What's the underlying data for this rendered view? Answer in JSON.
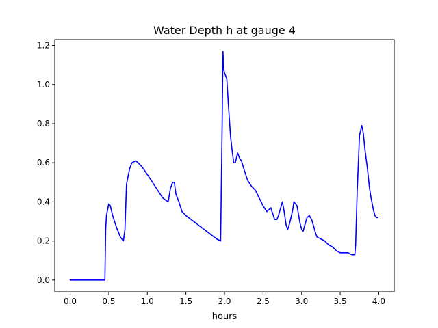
{
  "chart_data": {
    "type": "line",
    "title": "Water Depth h at gauge 4",
    "xlabel": "hours",
    "ylabel": "",
    "xlim": [
      -0.2,
      4.2
    ],
    "ylim": [
      -0.06,
      1.23
    ],
    "xticks": [
      {
        "value": 0.0,
        "label": "0.0"
      },
      {
        "value": 0.5,
        "label": "0.5"
      },
      {
        "value": 1.0,
        "label": "1.0"
      },
      {
        "value": 1.5,
        "label": "1.5"
      },
      {
        "value": 2.0,
        "label": "2.0"
      },
      {
        "value": 2.5,
        "label": "2.5"
      },
      {
        "value": 3.0,
        "label": "3.0"
      },
      {
        "value": 3.5,
        "label": "3.5"
      },
      {
        "value": 4.0,
        "label": "4.0"
      }
    ],
    "yticks": [
      {
        "value": 0.0,
        "label": "0.0"
      },
      {
        "value": 0.2,
        "label": "0.2"
      },
      {
        "value": 0.4,
        "label": "0.4"
      },
      {
        "value": 0.6,
        "label": "0.6"
      },
      {
        "value": 0.8,
        "label": "0.8"
      },
      {
        "value": 1.0,
        "label": "1.0"
      },
      {
        "value": 1.2,
        "label": "1.2"
      }
    ],
    "grid": false,
    "series": [
      {
        "color": "#0000ff",
        "x": [
          0.0,
          0.45,
          0.46,
          0.47,
          0.5,
          0.52,
          0.55,
          0.6,
          0.65,
          0.69,
          0.71,
          0.73,
          0.77,
          0.8,
          0.85,
          0.88,
          0.93,
          1.0,
          1.1,
          1.2,
          1.27,
          1.3,
          1.33,
          1.35,
          1.37,
          1.4,
          1.45,
          1.5,
          1.6,
          1.7,
          1.8,
          1.9,
          1.95,
          1.97,
          1.98,
          1.99,
          2.0,
          2.03,
          2.05,
          2.08,
          2.1,
          2.12,
          2.14,
          2.17,
          2.18,
          2.2,
          2.22,
          2.25,
          2.3,
          2.35,
          2.4,
          2.45,
          2.5,
          2.55,
          2.6,
          2.65,
          2.67,
          2.68,
          2.7,
          2.75,
          2.77,
          2.8,
          2.82,
          2.83,
          2.85,
          2.88,
          2.9,
          2.94,
          2.98,
          3.0,
          3.02,
          3.04,
          3.07,
          3.1,
          3.13,
          3.16,
          3.18,
          3.2,
          3.25,
          3.3,
          3.35,
          3.4,
          3.45,
          3.5,
          3.55,
          3.6,
          3.65,
          3.69,
          3.7,
          3.72,
          3.75,
          3.78,
          3.8,
          3.82,
          3.85,
          3.88,
          3.9,
          3.93,
          3.95,
          3.97,
          3.99
        ],
        "y": [
          0.0,
          0.0,
          0.26,
          0.33,
          0.39,
          0.38,
          0.33,
          0.27,
          0.22,
          0.2,
          0.26,
          0.49,
          0.57,
          0.6,
          0.61,
          0.6,
          0.58,
          0.54,
          0.48,
          0.42,
          0.4,
          0.47,
          0.5,
          0.5,
          0.44,
          0.41,
          0.35,
          0.33,
          0.3,
          0.27,
          0.24,
          0.21,
          0.2,
          0.8,
          1.17,
          1.08,
          1.06,
          1.03,
          0.9,
          0.73,
          0.66,
          0.6,
          0.6,
          0.65,
          0.64,
          0.62,
          0.61,
          0.57,
          0.51,
          0.48,
          0.46,
          0.42,
          0.38,
          0.35,
          0.37,
          0.31,
          0.31,
          0.31,
          0.33,
          0.4,
          0.36,
          0.28,
          0.26,
          0.27,
          0.3,
          0.35,
          0.4,
          0.38,
          0.29,
          0.26,
          0.25,
          0.28,
          0.32,
          0.33,
          0.31,
          0.27,
          0.24,
          0.22,
          0.21,
          0.2,
          0.18,
          0.17,
          0.15,
          0.14,
          0.14,
          0.14,
          0.13,
          0.13,
          0.18,
          0.45,
          0.74,
          0.79,
          0.75,
          0.67,
          0.58,
          0.47,
          0.42,
          0.36,
          0.33,
          0.32,
          0.32
        ]
      }
    ]
  }
}
